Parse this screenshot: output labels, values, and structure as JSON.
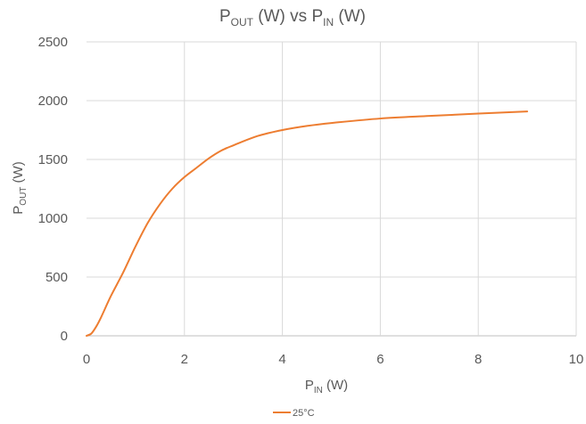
{
  "chart_data": {
    "type": "line",
    "title": {
      "main": "P",
      "main_sub": "OUT",
      "tail": " (W) vs P",
      "tail_sub": "IN",
      "end": " (W)"
    },
    "xlabel": {
      "main": "P",
      "sub": "IN",
      "tail": " (W)"
    },
    "ylabel": {
      "main": "P",
      "sub": "OUT",
      "tail": " (W)"
    },
    "xlim": [
      0,
      10
    ],
    "ylim": [
      0,
      2500
    ],
    "xticks": [
      0,
      2,
      4,
      6,
      8,
      10
    ],
    "yticks": [
      0,
      500,
      1000,
      1500,
      2000,
      2500
    ],
    "grid": true,
    "legend_position": "bottom-center",
    "series": [
      {
        "name": "25°C",
        "color": "#ed7d31",
        "x": [
          0.0,
          0.1,
          0.2,
          0.3,
          0.5,
          0.75,
          1.0,
          1.25,
          1.5,
          1.75,
          2.0,
          2.25,
          2.5,
          2.75,
          3.0,
          3.5,
          4.0,
          4.5,
          5.0,
          6.0,
          7.0,
          8.0,
          9.0
        ],
        "y": [
          0,
          20,
          80,
          160,
          340,
          540,
          760,
          960,
          1120,
          1250,
          1350,
          1430,
          1510,
          1575,
          1620,
          1700,
          1750,
          1785,
          1810,
          1848,
          1870,
          1890,
          1908
        ]
      }
    ]
  }
}
